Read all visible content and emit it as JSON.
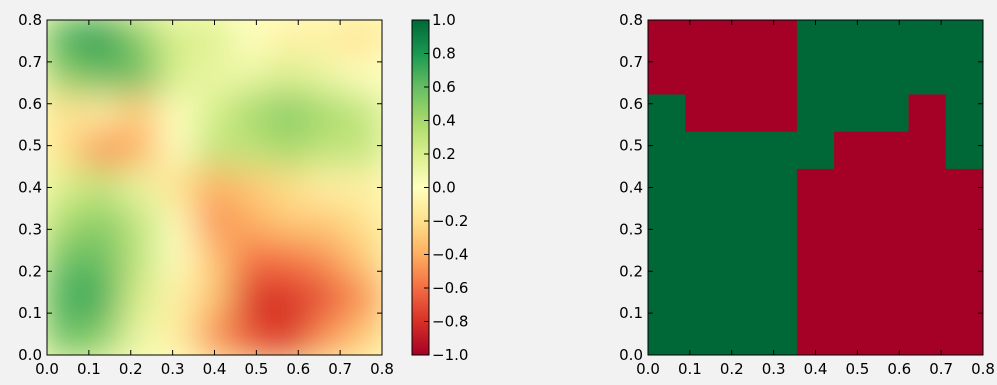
{
  "chart_data": [
    {
      "type": "heatmap",
      "title": "",
      "xlabel": "",
      "ylabel": "",
      "xlim": [
        0.0,
        0.8
      ],
      "ylim": [
        0.0,
        0.8
      ],
      "x_ticks": [
        "0.0",
        "0.1",
        "0.2",
        "0.3",
        "0.4",
        "0.5",
        "0.6",
        "0.7",
        "0.8"
      ],
      "y_ticks": [
        "0.0",
        "0.1",
        "0.2",
        "0.3",
        "0.4",
        "0.5",
        "0.6",
        "0.7",
        "0.8"
      ],
      "colormap": "RdYlGn",
      "grid_resolution": 9,
      "values": [
        [
          0.7,
          0.8,
          0.5,
          0.2,
          0.2,
          0.0,
          -0.1,
          -0.1,
          -0.2
        ],
        [
          0.5,
          0.6,
          0.6,
          0.2,
          0.1,
          0.1,
          0.2,
          0.1,
          0.0
        ],
        [
          -0.2,
          -0.1,
          -0.3,
          0.0,
          0.2,
          0.4,
          0.5,
          0.4,
          0.3
        ],
        [
          -0.2,
          -0.5,
          -0.4,
          0.0,
          0.3,
          0.3,
          0.4,
          0.3,
          0.3
        ],
        [
          0.2,
          0.3,
          0.1,
          -0.2,
          -0.4,
          -0.3,
          -0.2,
          -0.1,
          -0.1
        ],
        [
          0.4,
          0.5,
          0.3,
          0.0,
          -0.5,
          -0.4,
          -0.3,
          -0.3,
          -0.2
        ],
        [
          0.6,
          0.6,
          0.3,
          0.0,
          -0.3,
          -0.6,
          -0.6,
          -0.5,
          -0.3
        ],
        [
          0.7,
          0.7,
          0.2,
          -0.1,
          -0.3,
          -0.8,
          -0.8,
          -0.7,
          -0.5
        ],
        [
          0.6,
          0.5,
          0.1,
          -0.1,
          -0.5,
          -0.7,
          -0.8,
          -0.5,
          -0.3
        ]
      ],
      "colorbar": {
        "min": -1.0,
        "max": 1.0,
        "ticks": [
          "1.0",
          "0.8",
          "0.6",
          "0.4",
          "0.2",
          "0.0",
          "−0.2",
          "−0.4",
          "−0.6",
          "−0.8",
          "−1.0"
        ]
      },
      "grid": false
    },
    {
      "type": "heatmap",
      "title": "",
      "xlabel": "",
      "ylabel": "",
      "xlim": [
        0.0,
        0.8
      ],
      "ylim": [
        0.0,
        0.8
      ],
      "x_ticks": [
        "0.0",
        "0.1",
        "0.2",
        "0.3",
        "0.4",
        "0.5",
        "0.6",
        "0.7",
        "0.8"
      ],
      "y_ticks": [
        "0.0",
        "0.1",
        "0.2",
        "0.3",
        "0.4",
        "0.5",
        "0.6",
        "0.7",
        "0.8"
      ],
      "classes": [
        {
          "value": 1,
          "color": "#006837"
        },
        {
          "value": -1,
          "color": "#a50026"
        }
      ],
      "grid_resolution": 9,
      "values": [
        [
          -1,
          -1,
          -1,
          -1,
          1,
          1,
          1,
          1,
          1
        ],
        [
          -1,
          -1,
          -1,
          -1,
          1,
          1,
          1,
          1,
          1
        ],
        [
          1,
          -1,
          -1,
          -1,
          1,
          1,
          1,
          -1,
          1
        ],
        [
          1,
          1,
          1,
          1,
          1,
          -1,
          -1,
          -1,
          1
        ],
        [
          1,
          1,
          1,
          1,
          -1,
          -1,
          -1,
          -1,
          -1
        ],
        [
          1,
          1,
          1,
          1,
          -1,
          -1,
          -1,
          -1,
          -1
        ],
        [
          1,
          1,
          1,
          1,
          -1,
          -1,
          -1,
          -1,
          -1
        ],
        [
          1,
          1,
          1,
          1,
          -1,
          -1,
          -1,
          -1,
          -1
        ],
        [
          1,
          1,
          1,
          1,
          -1,
          -1,
          -1,
          -1,
          -1
        ]
      ],
      "grid": false
    }
  ]
}
